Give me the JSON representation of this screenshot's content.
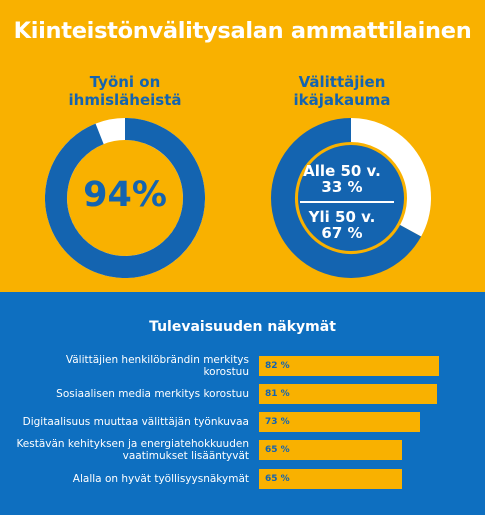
{
  "title": "Kiinteistönvälitysalan ammattilainen",
  "colors": {
    "orange": "#F9B100",
    "blue": "#1464B0",
    "white": "#FFFFFF"
  },
  "donut1": {
    "title_lines": [
      "Työni on",
      "ihmisläheistä"
    ],
    "center_label": "94%"
  },
  "donut2": {
    "title_lines": [
      "Välittäjien",
      "ikäjakauma"
    ],
    "label_a_lines": [
      "Alle 50 v.",
      "33 %"
    ],
    "label_b_lines": [
      "Yli 50 v.",
      "67 %"
    ]
  },
  "section_title": "Tulevaisuuden näkymät",
  "chart_data": [
    {
      "type": "pie",
      "title": "Työni on ihmisläheistä",
      "slices": [
        {
          "name": "Työni on ihmisläheistä",
          "value": 94
        },
        {
          "name": "",
          "value": 6
        }
      ]
    },
    {
      "type": "pie",
      "title": "Välittäjien ikäjakauma",
      "slices": [
        {
          "name": "Alle 50 v.",
          "value": 33
        },
        {
          "name": "Yli 50 v.",
          "value": 67
        }
      ]
    },
    {
      "type": "bar",
      "orientation": "horizontal",
      "title": "Tulevaisuuden näkymät",
      "categories": [
        [
          "Välittäjien henkilöbrändin merkitys",
          "korostuu"
        ],
        [
          "Sosiaalisen media merkitys korostuu"
        ],
        [
          "Digitaalisuus muuttaa välittäjän työnkuvaa"
        ],
        [
          "Kestävän kehityksen ja energiatehokkuuden",
          "vaatimukset lisääntyvät"
        ],
        [
          "Alalla on hyvät työllisyysnäkymät"
        ]
      ],
      "values": [
        82,
        81,
        73,
        65,
        65
      ],
      "value_labels": [
        "82 %",
        "81 %",
        "73 %",
        "65 %",
        "65 %"
      ],
      "xlim": [
        0,
        100
      ]
    }
  ]
}
